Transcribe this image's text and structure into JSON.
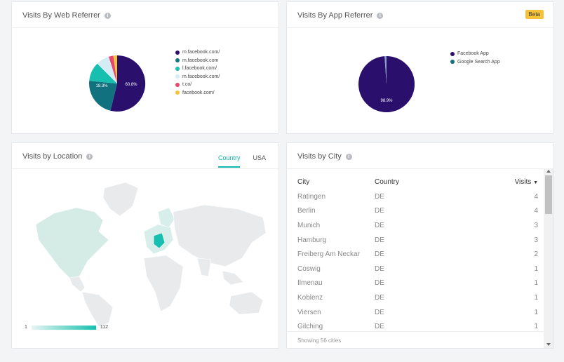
{
  "web_referrer": {
    "title": "Visits By Web Referrer",
    "legend": [
      {
        "label": "m.facebook.com/",
        "color": "#2a0f6d"
      },
      {
        "label": "m.facebook.com",
        "color": "#12717e"
      },
      {
        "label": "l.facebook.com/",
        "color": "#17bfb0"
      },
      {
        "label": "m.facebook.com/",
        "color": "#d4ecf3"
      },
      {
        "label": "t.co/",
        "color": "#e8476f"
      },
      {
        "label": "facebook.com/",
        "color": "#f5c33b"
      }
    ],
    "labels": {
      "big": "60.8%",
      "second": "18.3%"
    }
  },
  "app_referrer": {
    "title": "Visits By App Referrer",
    "badge": "Beta",
    "legend": [
      {
        "label": "Facebook App",
        "color": "#2a0f6d"
      },
      {
        "label": "Google Search App",
        "color": "#12717e"
      }
    ],
    "labels": {
      "big": "98.9%"
    }
  },
  "location": {
    "title": "Visits by Location",
    "tabs": [
      "Country",
      "USA"
    ],
    "scale_min": "1",
    "scale_max": "112"
  },
  "city": {
    "title": "Visits by City",
    "columns": {
      "city": "City",
      "country": "Country",
      "visits": "Visits"
    },
    "rows": [
      {
        "city": "Ratingen",
        "country": "DE",
        "visits": "4"
      },
      {
        "city": "Berlin",
        "country": "DE",
        "visits": "4"
      },
      {
        "city": "Munich",
        "country": "DE",
        "visits": "3"
      },
      {
        "city": "Hamburg",
        "country": "DE",
        "visits": "3"
      },
      {
        "city": "Freiberg Am Neckar",
        "country": "DE",
        "visits": "2"
      },
      {
        "city": "Coswig",
        "country": "DE",
        "visits": "1"
      },
      {
        "city": "Ilmenau",
        "country": "DE",
        "visits": "1"
      },
      {
        "city": "Koblenz",
        "country": "DE",
        "visits": "1"
      },
      {
        "city": "Viersen",
        "country": "DE",
        "visits": "1"
      },
      {
        "city": "Gilching",
        "country": "DE",
        "visits": "1"
      }
    ],
    "footer": "Showing 56 cities"
  },
  "icons": {
    "info": "info-icon",
    "sort": "sort-caret-down-icon"
  }
}
